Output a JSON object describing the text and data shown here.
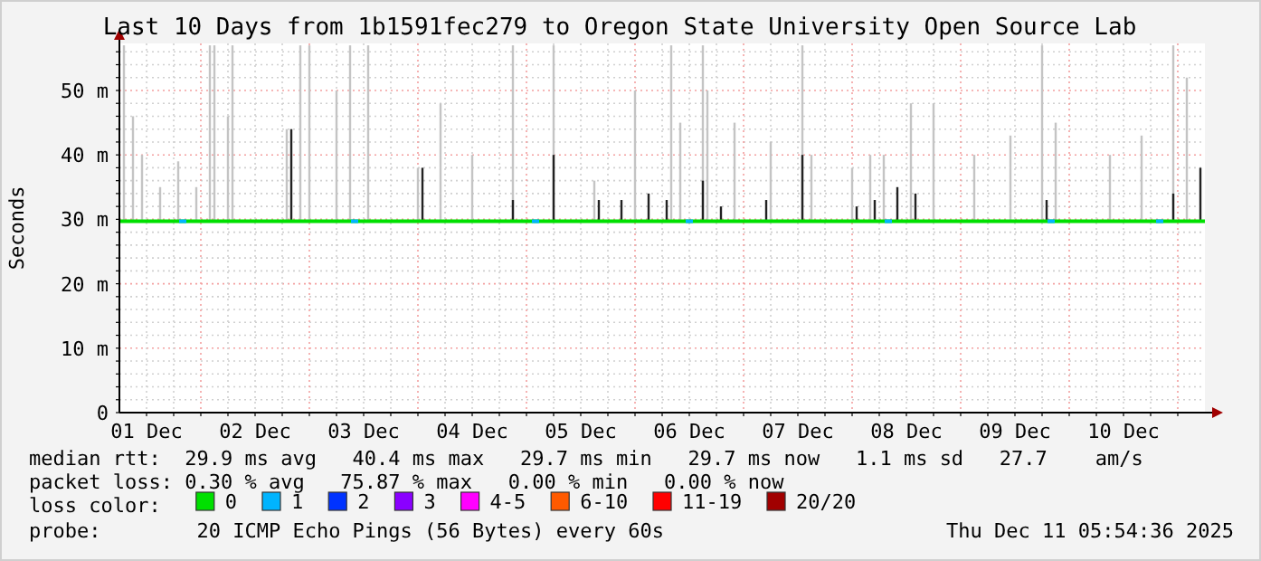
{
  "chart_data": {
    "type": "line",
    "title": "Last 10 Days from 1b1591fec279 to Oregon State University Open Source Lab",
    "ylabel": "Seconds",
    "legend_title": "loss color:",
    "legend": "bottom",
    "grid": true,
    "xlim": [
      "2025-12-01T06:00",
      "2025-12-11T06:00"
    ],
    "xticks": [
      {
        "value": "2025-12-01T12:00",
        "label": "01 Dec"
      },
      {
        "value": "2025-12-01T18:00",
        "label": null
      },
      {
        "value": "2025-12-02T00:00",
        "label": null
      },
      {
        "value": "2025-12-02T06:00",
        "label": null
      },
      {
        "value": "2025-12-02T12:00",
        "label": "02 Dec"
      },
      {
        "value": "2025-12-02T18:00",
        "label": null
      },
      {
        "value": "2025-12-03T00:00",
        "label": null
      },
      {
        "value": "2025-12-03T06:00",
        "label": null
      },
      {
        "value": "2025-12-03T12:00",
        "label": "03 Dec"
      },
      {
        "value": "2025-12-03T18:00",
        "label": null
      },
      {
        "value": "2025-12-04T00:00",
        "label": null
      },
      {
        "value": "2025-12-04T06:00",
        "label": null
      },
      {
        "value": "2025-12-04T12:00",
        "label": "04 Dec"
      },
      {
        "value": "2025-12-04T18:00",
        "label": null
      },
      {
        "value": "2025-12-05T00:00",
        "label": null
      },
      {
        "value": "2025-12-05T06:00",
        "label": null
      },
      {
        "value": "2025-12-05T12:00",
        "label": "05 Dec"
      },
      {
        "value": "2025-12-05T18:00",
        "label": null
      },
      {
        "value": "2025-12-06T00:00",
        "label": null
      },
      {
        "value": "2025-12-06T06:00",
        "label": null
      },
      {
        "value": "2025-12-06T12:00",
        "label": "06 Dec"
      },
      {
        "value": "2025-12-06T18:00",
        "label": null
      },
      {
        "value": "2025-12-07T00:00",
        "label": null
      },
      {
        "value": "2025-12-07T06:00",
        "label": null
      },
      {
        "value": "2025-12-07T12:00",
        "label": "07 Dec"
      },
      {
        "value": "2025-12-07T18:00",
        "label": null
      },
      {
        "value": "2025-12-08T00:00",
        "label": null
      },
      {
        "value": "2025-12-08T06:00",
        "label": null
      },
      {
        "value": "2025-12-08T12:00",
        "label": "08 Dec"
      },
      {
        "value": "2025-12-08T18:00",
        "label": null
      },
      {
        "value": "2025-12-09T00:00",
        "label": null
      },
      {
        "value": "2025-12-09T06:00",
        "label": null
      },
      {
        "value": "2025-12-09T12:00",
        "label": "09 Dec"
      },
      {
        "value": "2025-12-09T18:00",
        "label": null
      },
      {
        "value": "2025-12-10T00:00",
        "label": null
      },
      {
        "value": "2025-12-10T06:00",
        "label": null
      },
      {
        "value": "2025-12-10T12:00",
        "label": "10 Dec"
      },
      {
        "value": "2025-12-10T18:00",
        "label": null
      },
      {
        "value": "2025-12-11T00:00",
        "label": null
      }
    ],
    "ylim": [
      0,
      57.3
    ],
    "yticks": [
      0,
      {
        "value": 2,
        "label": null
      },
      {
        "value": 4,
        "label": null
      },
      {
        "value": 6,
        "label": null
      },
      {
        "value": 8,
        "label": null
      },
      {
        "value": 10,
        "label": "10 m"
      },
      {
        "value": 12,
        "label": null
      },
      {
        "value": 14,
        "label": null
      },
      {
        "value": 16,
        "label": null
      },
      {
        "value": 18,
        "label": null
      },
      {
        "value": 20,
        "label": "20 m"
      },
      {
        "value": 22,
        "label": null
      },
      {
        "value": 24,
        "label": null
      },
      {
        "value": 26,
        "label": null
      },
      {
        "value": 28,
        "label": null
      },
      {
        "value": 30,
        "label": "30 m"
      },
      {
        "value": 32,
        "label": null
      },
      {
        "value": 34,
        "label": null
      },
      {
        "value": 36,
        "label": null
      },
      {
        "value": 38,
        "label": null
      },
      {
        "value": 40,
        "label": "40 m"
      },
      {
        "value": 42,
        "label": null
      },
      {
        "value": 44,
        "label": null
      },
      {
        "value": 46,
        "label": null
      },
      {
        "value": 48,
        "label": null
      },
      {
        "value": 50,
        "label": "50 m"
      },
      {
        "value": 52,
        "label": null
      },
      {
        "value": 54,
        "label": null
      },
      {
        "value": 56,
        "label": null
      }
    ],
    "series": [
      {
        "type": "bar",
        "color": "#c4c4c4",
        "x": [
          "2025-12-01T07:00",
          "2025-12-01T09:00",
          "2025-12-01T11:00",
          "2025-12-01T15:00",
          "2025-12-01T19:00",
          "2025-12-01T23:00",
          "2025-12-02T02:00",
          "2025-12-02T03:00",
          "2025-12-02T06:00",
          "2025-12-02T07:00",
          "2025-12-02T19:00",
          "2025-12-02T22:00",
          "2025-12-03T00:00",
          "2025-12-03T06:00",
          "2025-12-03T09:00",
          "2025-12-03T13:00",
          "2025-12-04T00:00",
          "2025-12-04T05:00",
          "2025-12-04T12:00",
          "2025-12-04T21:00",
          "2025-12-05T06:00",
          "2025-12-05T15:00",
          "2025-12-06T00:00",
          "2025-12-06T08:00",
          "2025-12-06T10:00",
          "2025-12-06T15:00",
          "2025-12-06T16:00",
          "2025-12-06T22:00",
          "2025-12-07T06:00",
          "2025-12-07T13:00",
          "2025-12-07T15:00",
          "2025-12-08T00:00",
          "2025-12-08T04:00",
          "2025-12-08T07:00",
          "2025-12-08T13:00",
          "2025-12-08T18:00",
          "2025-12-09T03:00",
          "2025-12-09T11:00",
          "2025-12-09T18:00",
          "2025-12-09T21:00",
          "2025-12-10T09:00",
          "2025-12-10T16:00",
          "2025-12-10T23:00",
          "2025-12-11T02:00"
        ],
        "base": [
          29.7,
          29.7,
          29.7,
          29.7,
          29.7,
          29.7,
          29.7,
          29.7,
          29.7,
          29.7,
          29.7,
          29.7,
          29.7,
          29.7,
          29.7,
          29.7,
          29.7,
          29.7,
          29.7,
          29.7,
          29.7,
          29.7,
          29.7,
          29.7,
          29.7,
          29.7,
          29.7,
          29.7,
          29.7,
          29.7,
          29.7,
          29.7,
          29.7,
          29.7,
          29.7,
          29.7,
          29.7,
          29.7,
          29.7,
          29.7,
          29.7,
          29.7,
          29.7,
          29.7
        ],
        "values": [
          27.3,
          16.3,
          10.3,
          5.3,
          9.3,
          5.3,
          27.3,
          27.3,
          16.3,
          27.3,
          14.3,
          27.3,
          27.3,
          20.3,
          27.3,
          27.3,
          8.3,
          18.3,
          10.3,
          27.3,
          27.3,
          6.3,
          20.3,
          27.3,
          15.3,
          27.3,
          20.3,
          15.3,
          12.3,
          27.3,
          10.3,
          8.3,
          10.3,
          10.3,
          18.3,
          18.3,
          10.3,
          13.3,
          27.3,
          15.3,
          10.3,
          13.3,
          27.3,
          22.3
        ]
      },
      {
        "type": "bar",
        "color": "#222222",
        "x": [
          "2025-12-02T20:00",
          "2025-12-04T01:00",
          "2025-12-04T21:00",
          "2025-12-05T06:00",
          "2025-12-05T16:00",
          "2025-12-05T21:00",
          "2025-12-06T03:00",
          "2025-12-06T07:00",
          "2025-12-06T15:00",
          "2025-12-06T19:00",
          "2025-12-07T05:00",
          "2025-12-07T13:00",
          "2025-12-08T01:00",
          "2025-12-08T05:00",
          "2025-12-08T10:00",
          "2025-12-08T14:00",
          "2025-12-09T19:00",
          "2025-12-10T23:00",
          "2025-12-11T05:00"
        ],
        "base": [
          29.7,
          29.7,
          29.7,
          29.7,
          29.7,
          29.7,
          29.7,
          29.7,
          29.7,
          29.7,
          29.7,
          29.7,
          29.7,
          29.7,
          29.7,
          29.7,
          29.7,
          29.7,
          29.7
        ],
        "values": [
          14.3,
          8.3,
          3.3,
          10.3,
          3.3,
          3.3,
          4.3,
          3.3,
          6.3,
          2.3,
          3.3,
          10.3,
          2.3,
          3.3,
          5.3,
          4.3,
          3.3,
          4.3,
          8.3
        ]
      },
      {
        "name": "0",
        "color": "#00e000",
        "x": [
          "2025-12-01T06:00",
          "2025-12-11T06:00"
        ],
        "values": [
          29.7,
          29.7
        ]
      },
      {
        "type": "scatter",
        "name": "1",
        "color": "#00b4ff",
        "marker": "square",
        "x": [
          "2025-12-01T20:00",
          "2025-12-03T10:00",
          "2025-12-05T02:00",
          "2025-12-06T12:00",
          "2025-12-08T08:00",
          "2025-12-09T20:00",
          "2025-12-10T20:00"
        ],
        "values": [
          29.7,
          29.7,
          29.7,
          29.7,
          29.7,
          29.7,
          29.7
        ]
      },
      {
        "type": "scatter",
        "name": "2",
        "color": "#0033ff"
      },
      {
        "type": "scatter",
        "name": "3",
        "color": "#8a00ff"
      },
      {
        "type": "scatter",
        "name": "4-5",
        "color": "#ff00ff"
      },
      {
        "type": "scatter",
        "name": "6-10",
        "color": "#ff5a00"
      },
      {
        "type": "scatter",
        "name": "11-19",
        "color": "#ff0000"
      },
      {
        "type": "scatter",
        "name": "20/20",
        "color": "#a10000"
      }
    ],
    "annotations": [
      "median rtt:  29.9 ms avg   40.4 ms max   29.7 ms min   29.7 ms now   1.1 ms sd   27.7    am/s",
      "packet loss: 0.30 % avg   75.87 % max   0.00 % min   0.00 % now",
      "probe:        20 ICMP Echo Pings (56 Bytes) every 60s",
      "Thu Dec 11 05:54:36 2025"
    ]
  }
}
